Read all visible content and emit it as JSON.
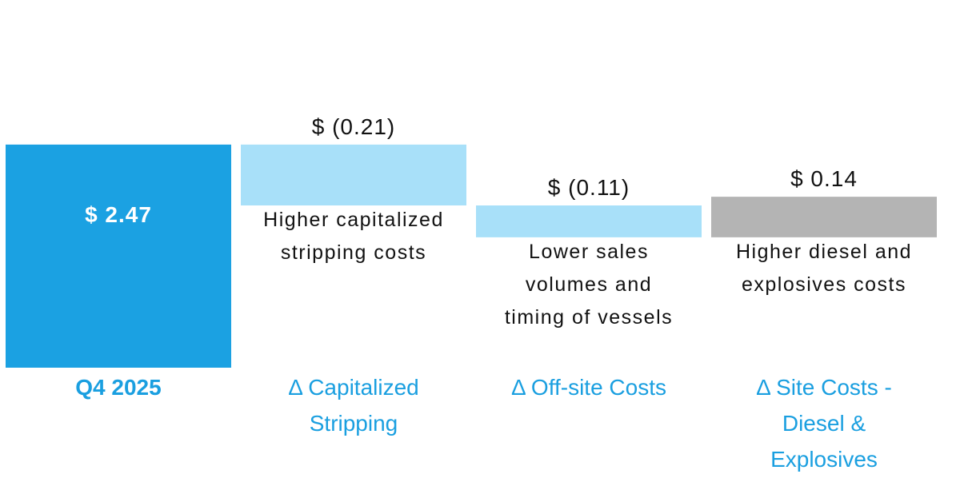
{
  "chart_data": {
    "type": "waterfall",
    "categories": [
      "Q4 2025",
      "Δ Capitalized Stripping",
      "Δ Off-site Costs",
      "Δ Site Costs - Diesel & Explosives"
    ],
    "values": [
      2.47,
      -0.21,
      -0.11,
      0.14
    ],
    "value_labels": [
      "$ 2.47",
      "$ (0.21)",
      "$ (0.11)",
      "$ 0.14"
    ],
    "measures": [
      "absolute",
      "relative",
      "relative",
      "relative"
    ],
    "colors": [
      "#1ba1e2",
      "#a8e0f9",
      "#a8e0f9",
      "#b4b4b4"
    ],
    "descriptions": [
      [],
      [
        "Higher capitalized",
        "stripping costs"
      ],
      [
        "Lower sales",
        "volumes and",
        "timing of vessels"
      ],
      [
        "Higher diesel and",
        "explosives costs"
      ]
    ],
    "ylim": [
      1.7,
      2.5
    ]
  }
}
